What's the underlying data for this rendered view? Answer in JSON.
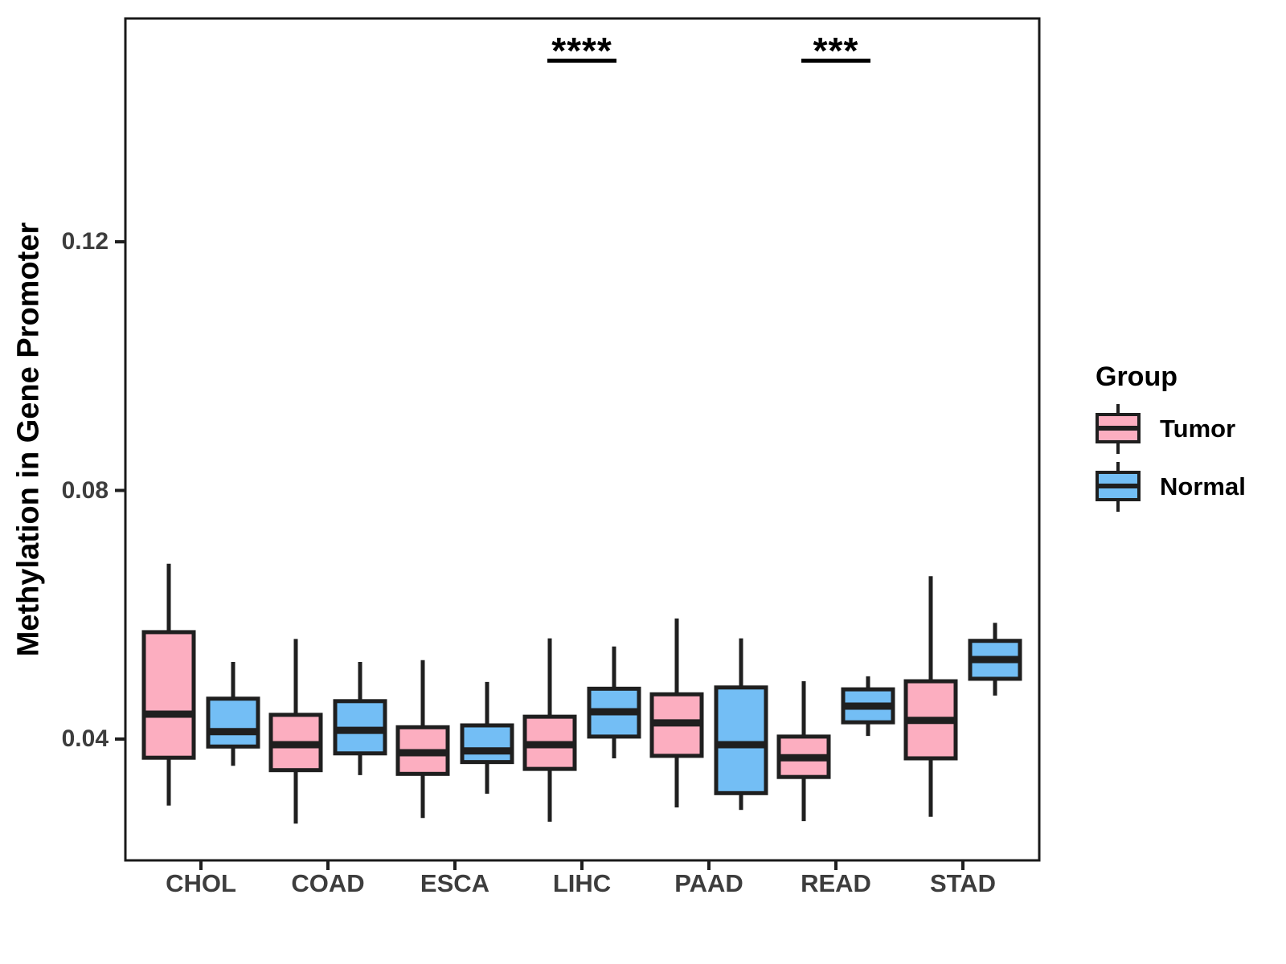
{
  "chart_data": {
    "type": "grouped_boxplot",
    "title": "",
    "xlabel": "",
    "ylabel": "Methylation in Gene Promoter",
    "categories": [
      "CHOL",
      "COAD",
      "ESCA",
      "LIHC",
      "PAAD",
      "READ",
      "STAD"
    ],
    "ylim": [
      0.021,
      0.156
    ],
    "yticks": [
      0.04,
      0.08,
      0.12
    ],
    "ytick_labels": [
      "0.04",
      "0.08",
      "0.12"
    ],
    "grid": "off",
    "legend": {
      "title": "Group",
      "position": "right"
    },
    "groups": [
      {
        "name": "Tumor",
        "color": "#FCAEC0"
      },
      {
        "name": "Normal",
        "color": "#73BEF5"
      }
    ],
    "series": [
      {
        "name": "Tumor",
        "boxes": [
          {
            "category": "CHOL",
            "whisker_low": 0.0293,
            "q1": 0.037,
            "median": 0.044,
            "q3": 0.0572,
            "whisker_high": 0.0682
          },
          {
            "category": "COAD",
            "whisker_low": 0.0264,
            "q1": 0.035,
            "median": 0.0391,
            "q3": 0.0439,
            "whisker_high": 0.0561
          },
          {
            "category": "ESCA",
            "whisker_low": 0.0273,
            "q1": 0.0344,
            "median": 0.0378,
            "q3": 0.0419,
            "whisker_high": 0.0527
          },
          {
            "category": "LIHC",
            "whisker_low": 0.0267,
            "q1": 0.0352,
            "median": 0.0391,
            "q3": 0.0436,
            "whisker_high": 0.0562
          },
          {
            "category": "PAAD",
            "whisker_low": 0.029,
            "q1": 0.0373,
            "median": 0.0426,
            "q3": 0.0472,
            "whisker_high": 0.0594
          },
          {
            "category": "READ",
            "whisker_low": 0.0268,
            "q1": 0.0339,
            "median": 0.037,
            "q3": 0.0404,
            "whisker_high": 0.0493
          },
          {
            "category": "STAD",
            "whisker_low": 0.0275,
            "q1": 0.0369,
            "median": 0.043,
            "q3": 0.0493,
            "whisker_high": 0.0662
          }
        ]
      },
      {
        "name": "Normal",
        "boxes": [
          {
            "category": "CHOL",
            "whisker_low": 0.0357,
            "q1": 0.0388,
            "median": 0.0412,
            "q3": 0.0465,
            "whisker_high": 0.0524
          },
          {
            "category": "COAD",
            "whisker_low": 0.0342,
            "q1": 0.0377,
            "median": 0.0414,
            "q3": 0.0461,
            "whisker_high": 0.0524
          },
          {
            "category": "ESCA",
            "whisker_low": 0.0312,
            "q1": 0.0363,
            "median": 0.0381,
            "q3": 0.0422,
            "whisker_high": 0.0492
          },
          {
            "category": "LIHC",
            "whisker_low": 0.0369,
            "q1": 0.0404,
            "median": 0.0444,
            "q3": 0.0481,
            "whisker_high": 0.0549
          },
          {
            "category": "PAAD",
            "whisker_low": 0.0286,
            "q1": 0.0313,
            "median": 0.0391,
            "q3": 0.0483,
            "whisker_high": 0.0562
          },
          {
            "category": "READ",
            "whisker_low": 0.0405,
            "q1": 0.0427,
            "median": 0.0453,
            "q3": 0.048,
            "whisker_high": 0.0501
          },
          {
            "category": "STAD",
            "whisker_low": 0.047,
            "q1": 0.0497,
            "median": 0.0528,
            "q3": 0.0558,
            "whisker_high": 0.0587
          }
        ]
      }
    ],
    "significance": [
      {
        "category": "LIHC",
        "label": "****"
      },
      {
        "category": "READ",
        "label": "***"
      }
    ],
    "style": {
      "box_border_color": "#1F1F1F",
      "panel_border_color": "#1A1A1A",
      "tick_color": "#1F1F1F",
      "tick_label_color": "#3D3D3D",
      "background": "#FFFFFF"
    }
  }
}
